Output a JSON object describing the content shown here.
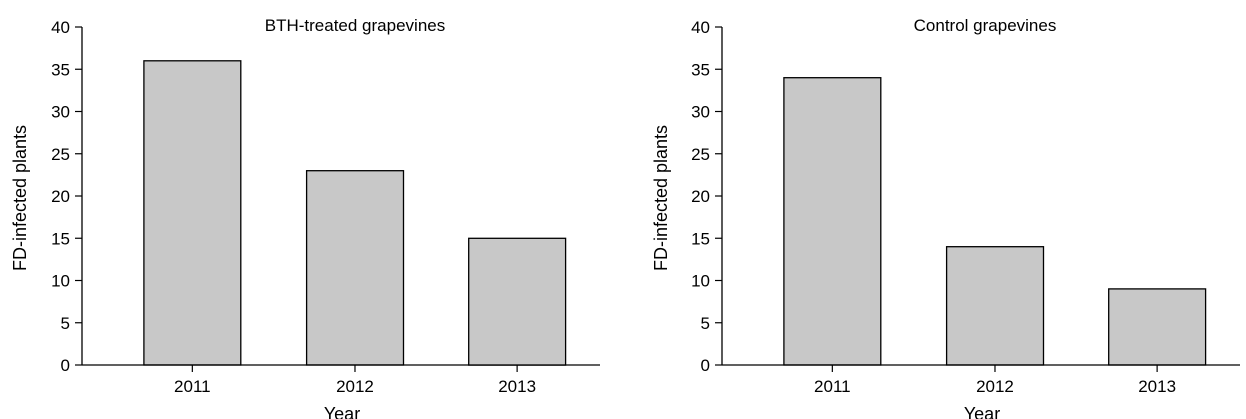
{
  "colors": {
    "bar_fill": "#c8c8c8",
    "bar_stroke": "#000000",
    "axis": "#000000",
    "background": "#ffffff"
  },
  "chart_data": [
    {
      "type": "bar",
      "title": "BTH-treated grapevines",
      "xlabel": "Year",
      "ylabel": "FD-infected plants",
      "categories": [
        "2011",
        "2012",
        "2013"
      ],
      "values": [
        36,
        23,
        15
      ],
      "ylim": [
        0,
        40
      ],
      "yticks": [
        0,
        5,
        10,
        15,
        20,
        25,
        30,
        35,
        40
      ],
      "grid": false,
      "legend": "none"
    },
    {
      "type": "bar",
      "title": "Control grapevines",
      "xlabel": "Year",
      "ylabel": "FD-infected plants",
      "categories": [
        "2011",
        "2012",
        "2013"
      ],
      "values": [
        34,
        14,
        9
      ],
      "ylim": [
        0,
        40
      ],
      "yticks": [
        0,
        5,
        10,
        15,
        20,
        25,
        30,
        35,
        40
      ],
      "grid": false,
      "legend": "none"
    }
  ]
}
